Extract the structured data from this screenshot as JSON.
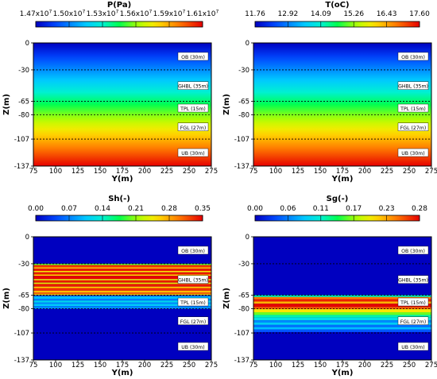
{
  "chart_data": [
    {
      "type": "heatmap",
      "variable": "pressure",
      "colorbar": {
        "title": "P(Pa)",
        "ticks": [
          {
            "base": "1.47x10",
            "exp": "7"
          },
          {
            "base": "1.50x10",
            "exp": "7"
          },
          {
            "base": "1.53x10",
            "exp": "7"
          },
          {
            "base": "1.56x10",
            "exp": "7"
          },
          {
            "base": "1.59x10",
            "exp": "7"
          },
          {
            "base": "1.61x10",
            "exp": "7"
          }
        ],
        "range": [
          14700000,
          16100000
        ]
      },
      "xlabel": "Y(m)",
      "ylabel": "Z(m)",
      "xlim": [
        75,
        275
      ],
      "ylim": [
        0,
        -137
      ],
      "x_ticks": [
        "75",
        "100",
        "125",
        "150",
        "175",
        "200",
        "225",
        "250",
        "275"
      ],
      "y_ticks": [
        "0",
        "-30",
        "-65",
        "-80",
        "-107",
        "-137"
      ],
      "layer_boundaries": [
        -30,
        -65,
        -80,
        -107
      ],
      "layers": [
        "OB  (30m)",
        "GHBL  (35m)",
        "TPL  (15m)",
        "FGL  (27m)",
        "UB  (30m)"
      ],
      "field": "linear_gradient_with_depth",
      "depth_profile": [
        {
          "z": 0,
          "value": 14700000
        },
        {
          "z": -137,
          "value": 16100000
        }
      ]
    },
    {
      "type": "heatmap",
      "variable": "temperature",
      "colorbar": {
        "title": "T(oC)",
        "ticks": [
          "11.76",
          "12.92",
          "14.09",
          "15.26",
          "16.43",
          "17.60"
        ],
        "range": [
          11.76,
          17.6
        ]
      },
      "xlabel": "Y(m)",
      "ylabel": "Z(m)",
      "xlim": [
        75,
        275
      ],
      "ylim": [
        0,
        -137
      ],
      "x_ticks": [
        "75",
        "100",
        "125",
        "150",
        "175",
        "200",
        "225",
        "250",
        "275"
      ],
      "y_ticks": [
        "0",
        "-30",
        "-65",
        "-80",
        "-107",
        "-137"
      ],
      "layer_boundaries": [
        -30,
        -65,
        -80,
        -107
      ],
      "layers": [
        "OB  (30m)",
        "GHBL  (35m)",
        "TPL  (15m)",
        "FGL  (27m)",
        "UB  (30m)"
      ],
      "field": "linear_gradient_with_depth",
      "depth_profile": [
        {
          "z": 0,
          "value": 11.76
        },
        {
          "z": -137,
          "value": 17.6
        }
      ]
    },
    {
      "type": "heatmap",
      "variable": "hydrate_saturation",
      "colorbar": {
        "title": "Sh(-)",
        "ticks": [
          "0.00",
          "0.07",
          "0.14",
          "0.21",
          "0.28",
          "0.35"
        ],
        "range": [
          0,
          0.35
        ]
      },
      "xlabel": "Y(m)",
      "ylabel": "Z(m)",
      "xlim": [
        75,
        275
      ],
      "ylim": [
        0,
        -137
      ],
      "x_ticks": [
        "75",
        "100",
        "125",
        "150",
        "175",
        "200",
        "225",
        "250",
        "275"
      ],
      "y_ticks": [
        "0",
        "-30",
        "-65",
        "-80",
        "-107",
        "-137"
      ],
      "layer_boundaries": [
        -30,
        -65,
        -80,
        -107
      ],
      "layers": [
        "OB  (30m)",
        "GHBL  (35m)",
        "TPL  (15m)",
        "FGL  (27m)",
        "UB  (30m)"
      ],
      "field": "horizontal_bands",
      "background_value": 0,
      "bands": [
        {
          "z_top": -30,
          "z_bottom": -31.5,
          "value": 0.2
        },
        {
          "z_top": -31.5,
          "z_bottom": -34,
          "value": 0.33
        },
        {
          "z_top": -34,
          "z_bottom": -35.5,
          "value": 0.27
        },
        {
          "z_top": -35.5,
          "z_bottom": -38,
          "value": 0.34
        },
        {
          "z_top": -38,
          "z_bottom": -39.5,
          "value": 0.25
        },
        {
          "z_top": -39.5,
          "z_bottom": -42,
          "value": 0.34
        },
        {
          "z_top": -42,
          "z_bottom": -43.5,
          "value": 0.26
        },
        {
          "z_top": -43.5,
          "z_bottom": -47,
          "value": 0.35
        },
        {
          "z_top": -47,
          "z_bottom": -48.5,
          "value": 0.25
        },
        {
          "z_top": -48.5,
          "z_bottom": -51,
          "value": 0.34
        },
        {
          "z_top": -51,
          "z_bottom": -52.5,
          "value": 0.24
        },
        {
          "z_top": -52.5,
          "z_bottom": -55.5,
          "value": 0.34
        },
        {
          "z_top": -55.5,
          "z_bottom": -57,
          "value": 0.26
        },
        {
          "z_top": -57,
          "z_bottom": -60,
          "value": 0.33
        },
        {
          "z_top": -60,
          "z_bottom": -62,
          "value": 0.27
        },
        {
          "z_top": -62,
          "z_bottom": -64,
          "value": 0.31
        },
        {
          "z_top": -64,
          "z_bottom": -65,
          "value": 0.24
        },
        {
          "z_top": -66,
          "z_bottom": -69,
          "value": 0.1
        },
        {
          "z_top": -69,
          "z_bottom": -71,
          "value": 0.07
        },
        {
          "z_top": -71,
          "z_bottom": -73,
          "value": 0.12
        },
        {
          "z_top": -73,
          "z_bottom": -75,
          "value": 0.08
        },
        {
          "z_top": -75,
          "z_bottom": -77,
          "value": 0.11
        },
        {
          "z_top": -77,
          "z_bottom": -79,
          "value": 0.07
        },
        {
          "z_top": -79,
          "z_bottom": -80,
          "value": 0.1
        }
      ]
    },
    {
      "type": "heatmap",
      "variable": "gas_saturation",
      "colorbar": {
        "title": "Sg(-)",
        "ticks": [
          "0.00",
          "0.06",
          "0.11",
          "0.17",
          "0.23",
          "0.28"
        ],
        "range": [
          0,
          0.28
        ]
      },
      "xlabel": "Y(m)",
      "ylabel": "Z(m)",
      "xlim": [
        75,
        275
      ],
      "ylim": [
        0,
        -137
      ],
      "x_ticks": [
        "75",
        "100",
        "125",
        "150",
        "175",
        "200",
        "225",
        "250",
        "275"
      ],
      "y_ticks": [
        "0",
        "-30",
        "-65",
        "-80",
        "-107",
        "-137"
      ],
      "layer_boundaries": [
        -30,
        -65,
        -80,
        -107
      ],
      "layers": [
        "OB  (30m)",
        "GHBL  (35m)",
        "TPL  (15m)",
        "FGL  (27m)",
        "UB  (30m)"
      ],
      "field": "horizontal_bands",
      "background_value": 0,
      "bands": [
        {
          "z_top": -65,
          "z_bottom": -67,
          "value": 0.12
        },
        {
          "z_top": -67,
          "z_bottom": -69.5,
          "value": 0.24
        },
        {
          "z_top": -69.5,
          "z_bottom": -72,
          "value": 0.27
        },
        {
          "z_top": -72,
          "z_bottom": -74.5,
          "value": 0.22
        },
        {
          "z_top": -74.5,
          "z_bottom": -78,
          "value": 0.28
        },
        {
          "z_top": -78,
          "z_bottom": -80.5,
          "value": 0.25
        },
        {
          "z_top": -80.5,
          "z_bottom": -84,
          "value": 0.2
        },
        {
          "z_top": -84,
          "z_bottom": -87,
          "value": 0.16
        },
        {
          "z_top": -87,
          "z_bottom": -90,
          "value": 0.12
        },
        {
          "z_top": -90,
          "z_bottom": -93,
          "value": 0.1
        },
        {
          "z_top": -93,
          "z_bottom": -95.5,
          "value": 0.06
        },
        {
          "z_top": -95.5,
          "z_bottom": -98,
          "value": 0.09
        },
        {
          "z_top": -98,
          "z_bottom": -100.5,
          "value": 0.05
        },
        {
          "z_top": -100.5,
          "z_bottom": -103,
          "value": 0.08
        },
        {
          "z_top": -103,
          "z_bottom": -106,
          "value": 0.04
        }
      ]
    }
  ]
}
